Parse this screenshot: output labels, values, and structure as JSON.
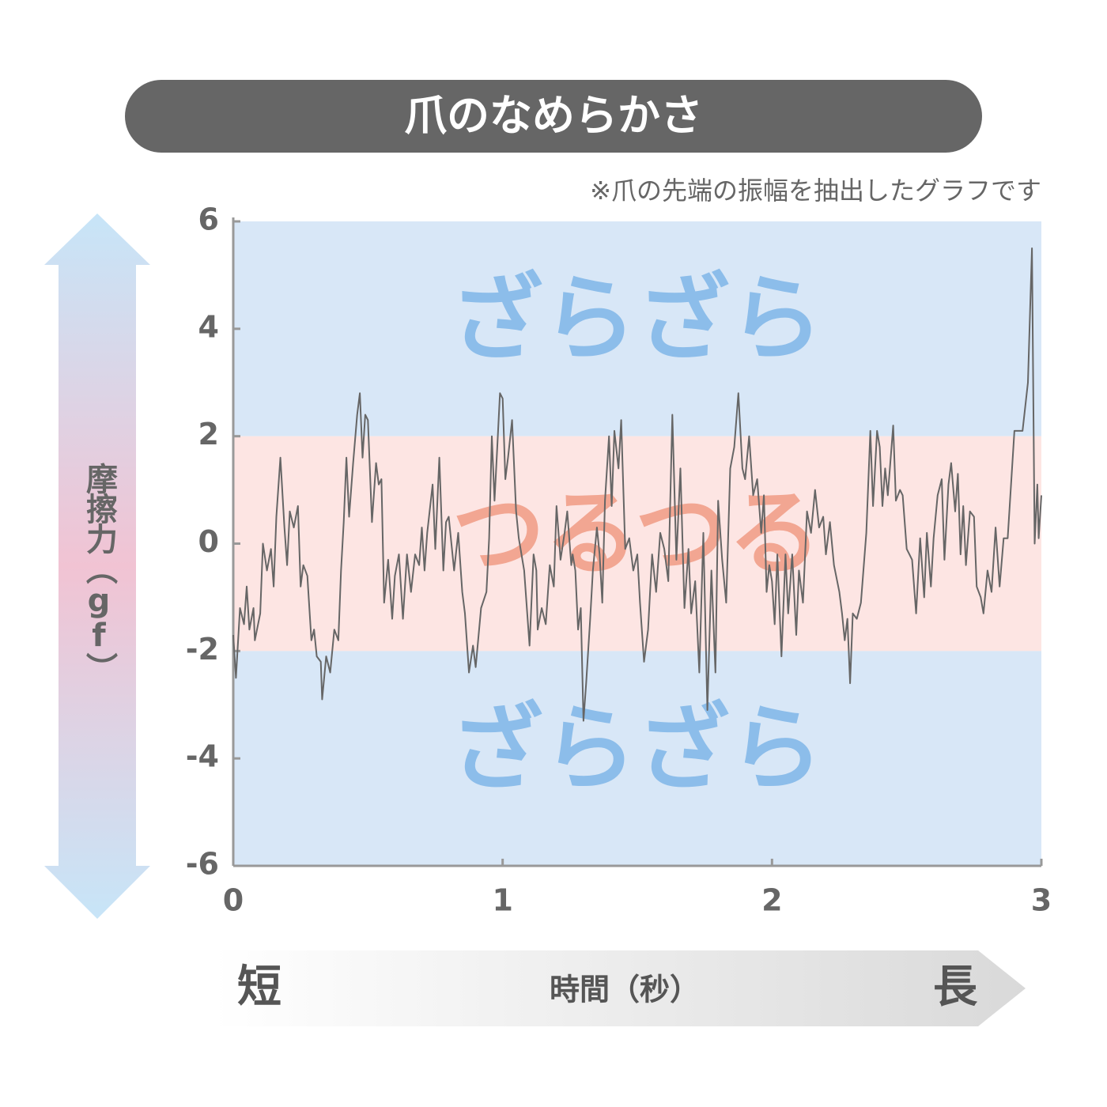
{
  "chart_data": {
    "type": "line",
    "title": "爪のなめらかさ",
    "note": "※爪の先端の振幅を抽出したグラフです",
    "y_label": "摩擦力（gf）",
    "x_label": "時間（秒）",
    "x_start_label": "短",
    "x_end_label": "長",
    "xlim": [
      0,
      3
    ],
    "xticks": [
      0,
      1,
      2,
      3
    ],
    "ylim": [
      -6,
      6
    ],
    "yticks": [
      -6,
      -4,
      -2,
      0,
      2,
      4,
      6
    ],
    "bands": [
      {
        "label": "ざらざら",
        "from": 2,
        "to": 6,
        "color": "#d8e7f7",
        "label_color": "#8cbdea"
      },
      {
        "label": "つるつる",
        "from": -2,
        "to": 2,
        "color": "#fde5e3",
        "label_color": "#f2a692"
      },
      {
        "label": "ざらざら",
        "from": -6,
        "to": -2,
        "color": "#d8e7f7",
        "label_color": "#8cbdea"
      }
    ],
    "x": [
      0,
      0.01,
      0.025,
      0.04,
      0.05,
      0.06,
      0.075,
      0.08,
      0.1,
      0.11,
      0.125,
      0.14,
      0.15,
      0.16,
      0.175,
      0.19,
      0.2,
      0.21,
      0.225,
      0.24,
      0.25,
      0.26,
      0.275,
      0.29,
      0.3,
      0.31,
      0.325,
      0.33,
      0.345,
      0.36,
      0.375,
      0.39,
      0.4,
      0.41,
      0.42,
      0.43,
      0.445,
      0.46,
      0.47,
      0.48,
      0.49,
      0.5,
      0.515,
      0.53,
      0.54,
      0.55,
      0.56,
      0.575,
      0.59,
      0.6,
      0.615,
      0.63,
      0.645,
      0.66,
      0.675,
      0.69,
      0.7,
      0.71,
      0.72,
      0.74,
      0.75,
      0.765,
      0.78,
      0.79,
      0.8,
      0.82,
      0.835,
      0.85,
      0.86,
      0.875,
      0.89,
      0.9,
      0.92,
      0.94,
      0.95,
      0.96,
      0.97,
      0.98,
      0.99,
      1.0,
      1.01,
      1.02,
      1.035,
      1.05,
      1.06,
      1.07,
      1.08,
      1.1,
      1.115,
      1.125,
      1.13,
      1.145,
      1.16,
      1.175,
      1.19,
      1.2,
      1.215,
      1.23,
      1.24,
      1.255,
      1.26,
      1.27,
      1.28,
      1.29,
      1.3,
      1.31,
      1.325,
      1.335,
      1.35,
      1.36,
      1.37,
      1.38,
      1.395,
      1.405,
      1.415,
      1.43,
      1.44,
      1.455,
      1.47,
      1.485,
      1.5,
      1.51,
      1.525,
      1.54,
      1.555,
      1.57,
      1.585,
      1.6,
      1.615,
      1.63,
      1.645,
      1.66,
      1.675,
      1.69,
      1.7,
      1.715,
      1.73,
      1.745,
      1.76,
      1.775,
      1.79,
      1.8,
      1.815,
      1.83,
      1.845,
      1.86,
      1.875,
      1.89,
      1.9,
      1.915,
      1.93,
      1.945,
      1.96,
      1.97,
      1.98,
      1.99,
      2.0,
      2.01,
      2.02,
      2.035,
      2.05,
      2.06,
      2.075,
      2.09,
      2.1,
      2.115,
      2.13,
      2.145,
      2.16,
      2.175,
      2.19,
      2.2,
      2.215,
      2.23,
      2.25,
      2.26,
      2.27,
      2.28,
      2.29,
      2.3,
      2.315,
      2.33,
      2.35,
      2.365,
      2.375,
      2.39,
      2.4,
      2.41,
      2.42,
      2.43,
      2.45,
      2.46,
      2.475,
      2.485,
      2.5,
      2.51,
      2.52,
      2.535,
      2.55,
      2.565,
      2.575,
      2.59,
      2.6,
      2.615,
      2.63,
      2.64,
      2.655,
      2.665,
      2.68,
      2.69,
      2.7,
      2.71,
      2.72,
      2.735,
      2.75,
      2.76,
      2.775,
      2.785,
      2.8,
      2.815,
      2.83,
      2.845,
      2.86,
      2.875,
      2.9,
      2.93,
      2.95,
      2.965,
      2.975,
      2.985,
      2.99,
      3.0
    ],
    "series": [
      {
        "color": "#666666",
        "values": [
          -1.7,
          -2.5,
          -1.2,
          -1.5,
          -0.8,
          -1.6,
          -1.2,
          -1.8,
          -1.3,
          0,
          -0.5,
          -0.1,
          -0.8,
          0.5,
          1.6,
          0.3,
          -0.4,
          0.6,
          0.3,
          0.7,
          -0.8,
          -0.4,
          -0.6,
          -1.8,
          -1.6,
          -2.1,
          -2.2,
          -2.9,
          -2.1,
          -2.4,
          -1.6,
          -1.8,
          -0.5,
          0.4,
          1.6,
          0.5,
          1.5,
          2.4,
          2.8,
          1.6,
          2.4,
          2.3,
          0.4,
          1.5,
          1.1,
          1.2,
          -1.1,
          -0.3,
          -1.4,
          -0.6,
          -0.2,
          -1.4,
          -0.2,
          -0.9,
          -0.2,
          -0.4,
          0.3,
          -0.5,
          0.2,
          1.1,
          -0.1,
          1.6,
          -0.5,
          0.4,
          0.5,
          -0.5,
          0.2,
          -0.9,
          -1.3,
          -2.4,
          -1.9,
          -2.3,
          -1.2,
          -0.9,
          0.1,
          2.0,
          0.8,
          1.8,
          2.8,
          2.7,
          1.2,
          1.6,
          2.3,
          0.6,
          0.1,
          -0.2,
          -0.5,
          -1.9,
          -0.2,
          -0.5,
          -1.6,
          -1.2,
          -1.5,
          -0.4,
          -0.8,
          0.7,
          -0.3,
          0.2,
          0.6,
          -0.4,
          -0.2,
          -0.5,
          -1.6,
          -1.2,
          -3.3,
          -2.6,
          -1.4,
          -0.5,
          0.3,
          -0.2,
          -1.1,
          0.8,
          2.0,
          0.7,
          2.1,
          1.4,
          2.3,
          -0.1,
          0.1,
          -0.5,
          -0.2,
          -1.1,
          -2.2,
          -1.6,
          -0.2,
          -0.9,
          0.2,
          -0.1,
          -0.7,
          2.4,
          -0.3,
          1.4,
          -1.2,
          -0.1,
          -1.3,
          -0.7,
          -2.4,
          0.2,
          -3.1,
          -0.5,
          -2.4,
          0.8,
          -0.3,
          -1.1,
          1.4,
          1.8,
          2.8,
          1.4,
          1.2,
          2.0,
          0.9,
          1.2,
          0.2,
          0.9,
          -0.9,
          -0.4,
          -0.7,
          -1.5,
          -0.2,
          -2.1,
          -0.2,
          -1.3,
          -0.2,
          -1.7,
          -0.5,
          -1.1,
          0.6,
          0.2,
          1.0,
          0.3,
          0.5,
          -0.2,
          0.4,
          -0.4,
          -0.9,
          -1.3,
          -1.8,
          -1.4,
          -2.6,
          -1.3,
          -1.4,
          -1.1,
          0.2,
          2.1,
          0.7,
          2.1,
          1.8,
          0.7,
          1.4,
          0.9,
          2.2,
          0.8,
          1.0,
          0.9,
          -0.1,
          -0.2,
          -0.3,
          -1.3,
          0.1,
          -1.0,
          0.2,
          -0.8,
          0.1,
          0.9,
          1.2,
          -0.3,
          1.1,
          1.5,
          0.6,
          1.3,
          -0.2,
          0.7,
          -0.4,
          0.6,
          0.5,
          -0.8,
          -1.0,
          -1.3,
          -0.5,
          -0.9,
          0.3,
          -0.8,
          0.1,
          0.1,
          2.1,
          2.1,
          3.0,
          5.5,
          0.0,
          1.1,
          0.1,
          0.9
        ]
      }
    ]
  }
}
